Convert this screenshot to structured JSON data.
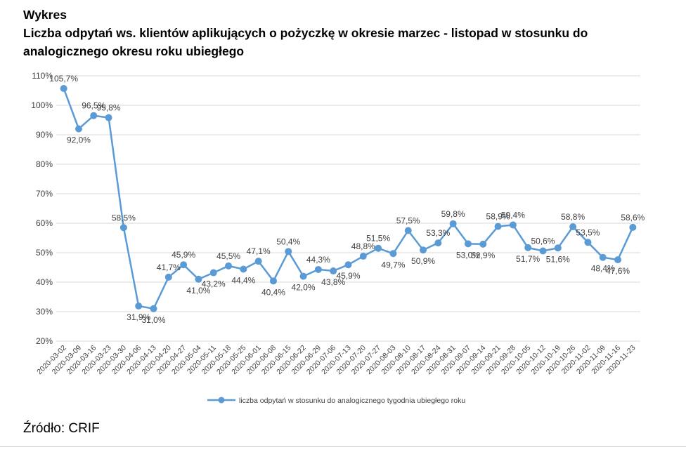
{
  "heading": {
    "label": "Wykres",
    "line1": "Liczba odpytań ws. klientów aplikujących o pożyczkę w okresie marzec - listopad w stosunku do",
    "line2": "analogicznego okresu roku ubiegłego"
  },
  "source": "Źródło: CRIF",
  "colors": {
    "series": "#5b9bd5",
    "grid": "#d9d9d9",
    "text": "#404040"
  },
  "chart_data": {
    "type": "line",
    "title": "Liczba odpytań ws. klientów aplikujących o pożyczkę w okresie marzec - listopad w stosunku do analogicznego okresu roku ubiegłego",
    "xlabel": "",
    "ylabel": "",
    "ylim": [
      20,
      110
    ],
    "yticks": [
      20,
      30,
      40,
      50,
      60,
      70,
      80,
      90,
      100,
      110
    ],
    "ytick_labels": [
      "20%",
      "30%",
      "40%",
      "50%",
      "60%",
      "70%",
      "80%",
      "90%",
      "100%",
      "110%"
    ],
    "grid": true,
    "legend_position": "bottom",
    "categories": [
      "2020-03-02",
      "2020-03-09",
      "2020-03-16",
      "2020-03-23",
      "2020-03-30",
      "2020-04-06",
      "2020-04-13",
      "2020-04-20",
      "2020-04-27",
      "2020-05-04",
      "2020-05-11",
      "2020-05-18",
      "2020-05-25",
      "2020-06-01",
      "2020-06-08",
      "2020-06-15",
      "2020-06-22",
      "2020-06-29",
      "2020-07-06",
      "2020-07-13",
      "2020-07-20",
      "2020-07-27",
      "2020-08-03",
      "2020-08-10",
      "2020-08-17",
      "2020-08-24",
      "2020-08-31",
      "2020-09-07",
      "2020-09-14",
      "2020-09-21",
      "2020-09-28",
      "2020-10-05",
      "2020-10-12",
      "2020-10-19",
      "2020-10-26",
      "2020-11-02",
      "2020-11-09",
      "2020-11-16",
      "2020-11-23"
    ],
    "series": [
      {
        "name": "liczba odpytań w stosunku do analogicznego tygodnia ubiegłego roku",
        "values": [
          105.7,
          92.0,
          96.5,
          95.8,
          58.5,
          31.9,
          31.0,
          41.7,
          45.9,
          41.0,
          43.2,
          45.5,
          44.4,
          47.1,
          40.4,
          50.4,
          42.0,
          44.3,
          43.8,
          45.9,
          48.8,
          51.5,
          49.7,
          57.5,
          50.9,
          53.3,
          59.8,
          53.0,
          52.9,
          58.9,
          59.4,
          51.7,
          50.6,
          51.6,
          58.8,
          53.5,
          48.4,
          47.6,
          58.6
        ],
        "labels": [
          "105,7%",
          "92,0%",
          "96,5%",
          "95,8%",
          "58,5%",
          "31,9%",
          "31,0%",
          "41,7%",
          "45,9%",
          "41,0%",
          "43,2%",
          "45,5%",
          "44,4%",
          "47,1%",
          "40,4%",
          "50,4%",
          "42,0%",
          "44,3%",
          "43,8%",
          "45,9%",
          "48,8%",
          "51,5%",
          "49,7%",
          "57,5%",
          "50,9%",
          "53,3%",
          "59,8%",
          "53,0%",
          "52,9%",
          "58,9%",
          "59,4%",
          "51,7%",
          "50,6%",
          "51,6%",
          "58,8%",
          "53,5%",
          "48,4%",
          "47,6%",
          "58,6%"
        ],
        "label_positions": [
          "above",
          "below",
          "above",
          "above",
          "above",
          "below",
          "below",
          "above",
          "above",
          "below",
          "below",
          "above",
          "below",
          "above",
          "below",
          "above",
          "below",
          "above",
          "below",
          "below",
          "above",
          "above",
          "below",
          "above",
          "below",
          "above",
          "above",
          "below",
          "below",
          "above",
          "above",
          "below",
          "above",
          "below",
          "above",
          "above",
          "below",
          "below",
          "above"
        ]
      }
    ]
  }
}
